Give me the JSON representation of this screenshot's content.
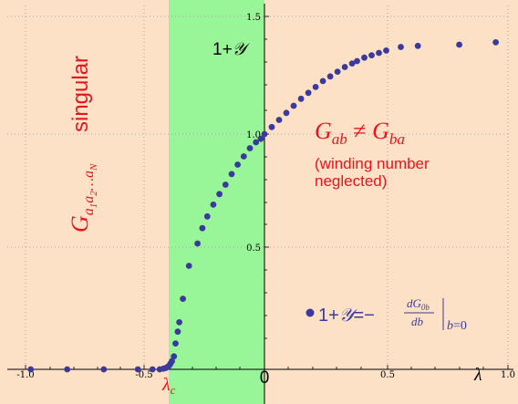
{
  "chart_data": {
    "type": "scatter",
    "title": "",
    "xlabel": "λ",
    "ylabel": "1+𝒴",
    "xlim": [
      -1.05,
      1.03
    ],
    "ylim": [
      0,
      1.55
    ],
    "x_ticks": [
      "-1.0",
      "-0.5",
      "0.5",
      "1.0"
    ],
    "y_ticks": [
      "0.5",
      "1.0",
      "1.5"
    ],
    "origin_label": "0",
    "lambda_c_label": "λc",
    "lambda_c": -0.24,
    "series": [
      {
        "color": "#3a3a9c",
        "points": [
          [
            -0.96,
            0.0
          ],
          [
            -0.81,
            0.0
          ],
          [
            -0.66,
            0.0
          ],
          [
            -0.52,
            0.0
          ],
          [
            -0.46,
            0.0
          ],
          [
            -0.43,
            0.0
          ],
          [
            -0.415,
            0.003
          ],
          [
            -0.405,
            0.006
          ],
          [
            -0.398,
            0.01
          ],
          [
            -0.392,
            0.015
          ],
          [
            -0.386,
            0.024
          ],
          [
            -0.38,
            0.035
          ],
          [
            -0.372,
            0.055
          ],
          [
            -0.365,
            0.11
          ],
          [
            -0.356,
            0.16
          ],
          [
            -0.35,
            0.2
          ],
          [
            -0.335,
            0.3
          ],
          [
            -0.31,
            0.44
          ],
          [
            -0.275,
            0.535
          ],
          [
            -0.255,
            0.6
          ],
          [
            -0.235,
            0.65
          ],
          [
            -0.21,
            0.7
          ],
          [
            -0.185,
            0.745
          ],
          [
            -0.16,
            0.785
          ],
          [
            -0.135,
            0.83
          ],
          [
            -0.11,
            0.87
          ],
          [
            -0.085,
            0.905
          ],
          [
            -0.06,
            0.94
          ],
          [
            -0.035,
            0.965
          ],
          [
            -0.015,
            0.98
          ],
          [
            0.0,
            1.0
          ],
          [
            0.03,
            1.03
          ],
          [
            0.06,
            1.06
          ],
          [
            0.09,
            1.09
          ],
          [
            0.12,
            1.12
          ],
          [
            0.15,
            1.15
          ],
          [
            0.18,
            1.175
          ],
          [
            0.21,
            1.2
          ],
          [
            0.24,
            1.225
          ],
          [
            0.27,
            1.245
          ],
          [
            0.3,
            1.265
          ],
          [
            0.33,
            1.285
          ],
          [
            0.36,
            1.3
          ],
          [
            0.38,
            1.31
          ],
          [
            0.41,
            1.325
          ],
          [
            0.44,
            1.335
          ],
          [
            0.47,
            1.345
          ],
          [
            0.5,
            1.355
          ],
          [
            0.56,
            1.37
          ],
          [
            0.63,
            1.375
          ],
          [
            0.8,
            1.38
          ],
          [
            0.95,
            1.39
          ]
        ]
      }
    ],
    "regions": {
      "left_color": "#fde1c7",
      "middle_color": "#98f598",
      "right_color": "#fde1c7",
      "middle_x": [
        -0.395,
        0.0
      ]
    },
    "annotations": {
      "left_formula": "Ga1a2…aN singular",
      "right_formula": "Gab ≠ Gba",
      "right_note_line1": "(winding number",
      "right_note_line2": "neglected)",
      "legend_formula": "1+𝒴=−dG0b/db |b=0"
    }
  }
}
